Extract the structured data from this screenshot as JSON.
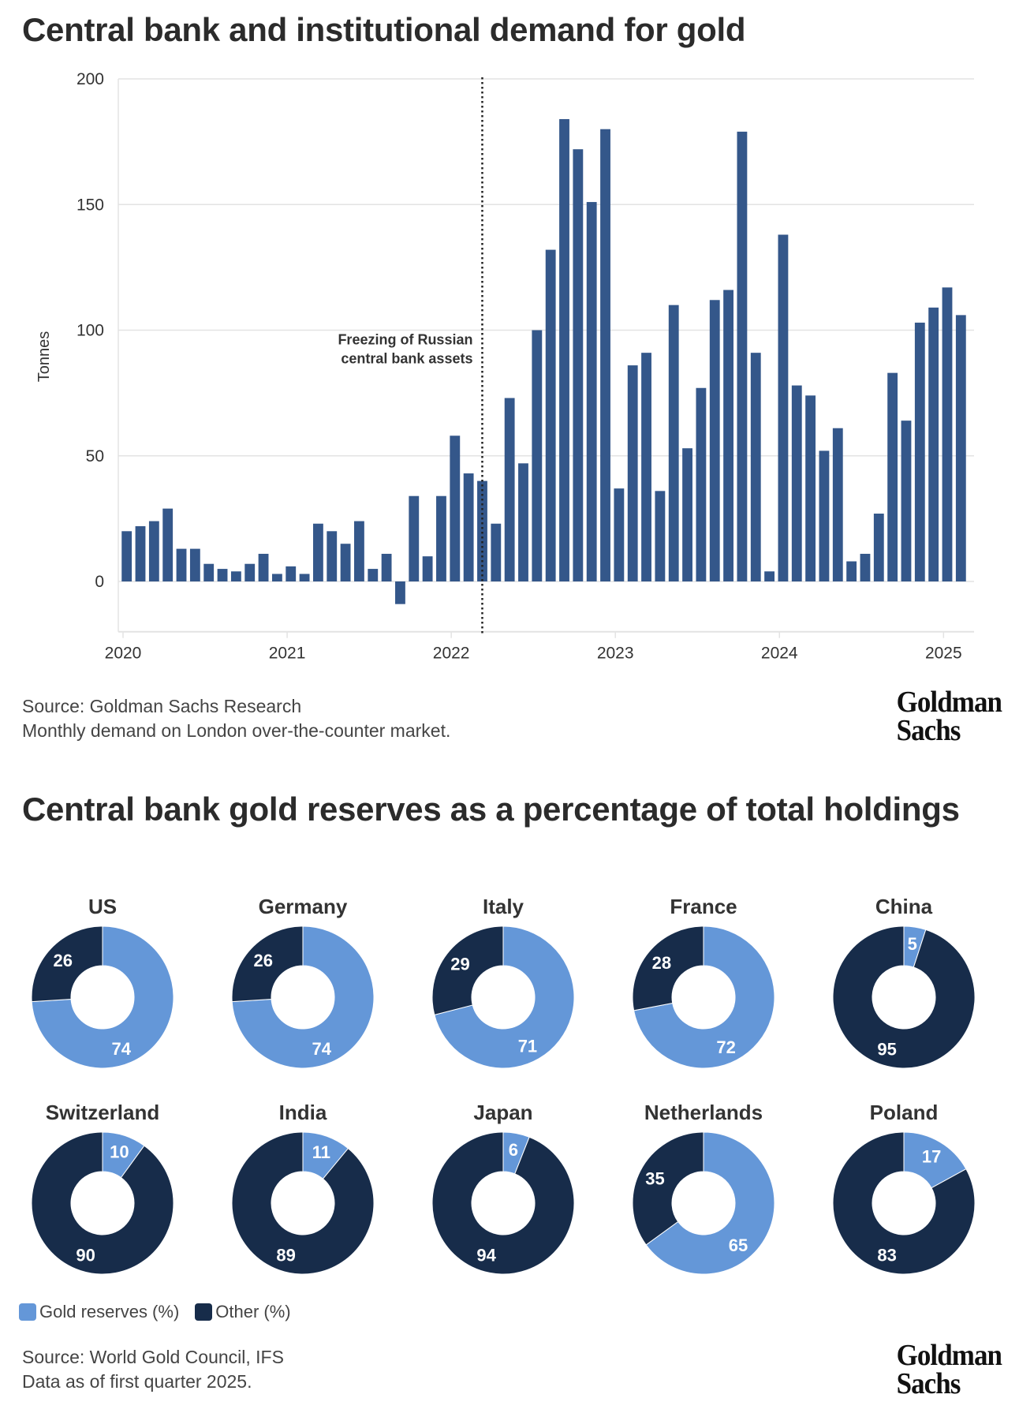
{
  "colors": {
    "bar": "#34578a",
    "gold": "#6497d8",
    "other": "#172c4a",
    "grid": "#e3e3e3",
    "annotation_line": "#222222"
  },
  "chart_data": [
    {
      "type": "bar",
      "title": "Central bank and institutional demand for gold",
      "xlabel": "",
      "ylabel": "Tonnes",
      "ylim": [
        -20,
        200
      ],
      "yticks": [
        0,
        50,
        100,
        150,
        200
      ],
      "xtick_labels": [
        "2020",
        "2021",
        "2022",
        "2023",
        "2024",
        "2025"
      ],
      "grid": true,
      "frequency": "monthly",
      "start": "2020-01",
      "values": [
        20,
        22,
        24,
        29,
        13,
        13,
        7,
        5,
        4,
        7,
        11,
        3,
        6,
        3,
        23,
        20,
        15,
        24,
        5,
        11,
        -9,
        34,
        10,
        34,
        58,
        43,
        40,
        23,
        73,
        47,
        100,
        132,
        184,
        172,
        151,
        180,
        37,
        86,
        91,
        36,
        110,
        53,
        77,
        112,
        116,
        179,
        91,
        4,
        138,
        78,
        74,
        52,
        61,
        8,
        11,
        27,
        83,
        64,
        103,
        109,
        117,
        106
      ],
      "annotation": {
        "x": "2022-03",
        "line1": "Freezing of Russian",
        "line2": "central bank assets"
      },
      "source_line1": "Source: Goldman Sachs Research",
      "source_line2": "Monthly demand on London over-the-counter market."
    },
    {
      "type": "pie",
      "title": "Central bank gold reserves as a percentage of total holdings",
      "legend": [
        {
          "label": "Gold reserves (%)",
          "key": "gold"
        },
        {
          "label": "Other (%)",
          "key": "other"
        }
      ],
      "legend_placement": "bottom-left",
      "series": [
        {
          "name": "US",
          "gold": 74,
          "other": 26
        },
        {
          "name": "Germany",
          "gold": 74,
          "other": 26
        },
        {
          "name": "Italy",
          "gold": 71,
          "other": 29
        },
        {
          "name": "France",
          "gold": 72,
          "other": 28
        },
        {
          "name": "China",
          "gold": 5,
          "other": 95
        },
        {
          "name": "Switzerland",
          "gold": 10,
          "other": 90
        },
        {
          "name": "India",
          "gold": 11,
          "other": 89
        },
        {
          "name": "Japan",
          "gold": 6,
          "other": 94
        },
        {
          "name": "Netherlands",
          "gold": 65,
          "other": 35
        },
        {
          "name": "Poland",
          "gold": 17,
          "other": 83
        }
      ],
      "source_line1": "Source: World Gold Council, IFS",
      "source_line2": "Data as of first quarter 2025."
    }
  ],
  "logo": {
    "line1": "Goldman",
    "line2": "Sachs"
  }
}
